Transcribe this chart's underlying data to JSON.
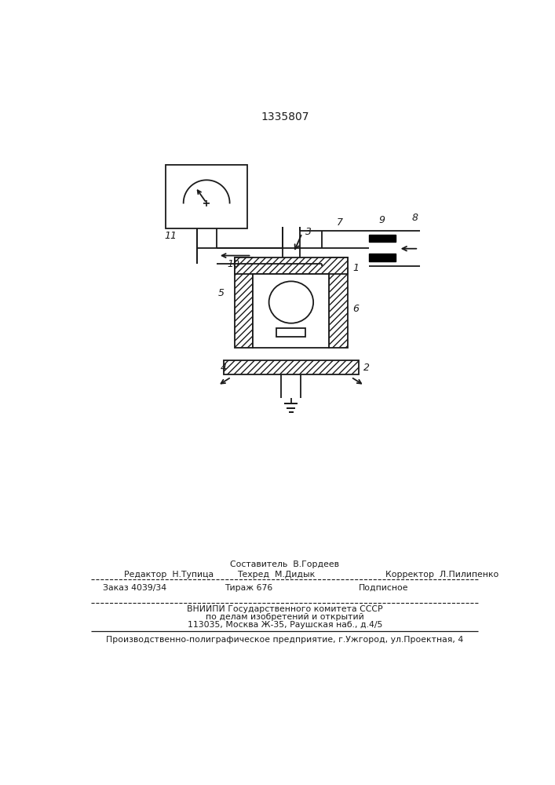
{
  "patent_number": "1335807",
  "bg": "#ffffff",
  "lc": "#1a1a1a",
  "lw": 1.3,
  "footer": {
    "sostavitel": "Составитель  В.Гордеев",
    "redaktor": "Редактор  Н.Тупица",
    "tekhred": "Техред  М.Дидык",
    "korrektor": "Корректор  Л.Пилипенко",
    "zakaz": "Заказ 4039/34",
    "tirazh": "Тираж 676",
    "podpisnoe": "Подписное",
    "vniip1": "ВНИИПИ Государственного комитета СССР",
    "vniip2": "по делам изобретений и открытий",
    "vniip3": "113035, Москва Ж-35, Раушская наб., д.4/5",
    "factory": "Производственно-полиграфическое предприятие, г.Ужгород, ул.Проектная, 4"
  }
}
